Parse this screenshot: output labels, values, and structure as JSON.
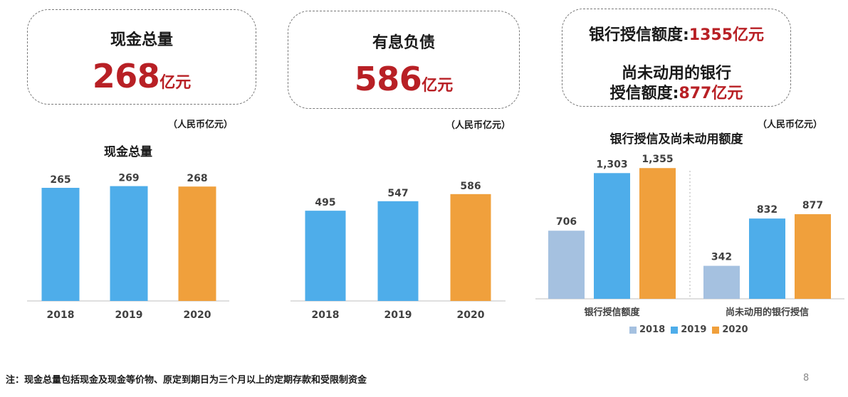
{
  "cards": {
    "cash": {
      "title": "现金总量",
      "value": "268",
      "unit": "亿元"
    },
    "debt": {
      "title": "有息负债",
      "value": "586",
      "unit": "亿元"
    },
    "credit": {
      "line1_label": "银行授信额度:",
      "line1_value": "1355亿元",
      "line2_label": "尚未动用的银行",
      "line3_label": "授信额度:",
      "line3_value": "877亿元"
    }
  },
  "unit_labels": [
    "（人民币亿元）",
    "（人民币亿元）",
    "（人民币亿元）"
  ],
  "colors": {
    "accent_red": "#b82025",
    "c2018": "#a5c1e0",
    "c2019": "#4eadea",
    "c2020": "#f0a03c",
    "axis": "#bfbfbf"
  },
  "chart_data": [
    {
      "type": "bar",
      "title": "现金总量",
      "categories": [
        "2018",
        "2019",
        "2020"
      ],
      "values": [
        265,
        269,
        268
      ],
      "labels": [
        "265",
        "269",
        "268"
      ],
      "colors": [
        "#4eadea",
        "#4eadea",
        "#f0a03c"
      ],
      "ylim": [
        0,
        300
      ]
    },
    {
      "type": "bar",
      "title": "",
      "categories": [
        "2018",
        "2019",
        "2020"
      ],
      "values": [
        495,
        547,
        586
      ],
      "labels": [
        "495",
        "547",
        "586"
      ],
      "colors": [
        "#4eadea",
        "#4eadea",
        "#f0a03c"
      ],
      "ylim": [
        0,
        800
      ]
    },
    {
      "type": "bar",
      "title": "银行授信及尚未动用额度",
      "categories": [
        "银行授信额度",
        "尚未动用的银行授信"
      ],
      "series": [
        {
          "name": "2018",
          "values": [
            706,
            342
          ],
          "labels": [
            "706",
            "342"
          ]
        },
        {
          "name": "2019",
          "values": [
            1303,
            832
          ],
          "labels": [
            "1,303",
            "832"
          ]
        },
        {
          "name": "2020",
          "values": [
            1355,
            877
          ],
          "labels": [
            "1,355",
            "877"
          ]
        }
      ],
      "ylim": [
        0,
        1600
      ],
      "legend": "bottom"
    }
  ],
  "footnote": "注：现金总量包括现金及现金等价物、原定到期日为三个月以上的定期存款和受限制资金",
  "page_number": "8"
}
